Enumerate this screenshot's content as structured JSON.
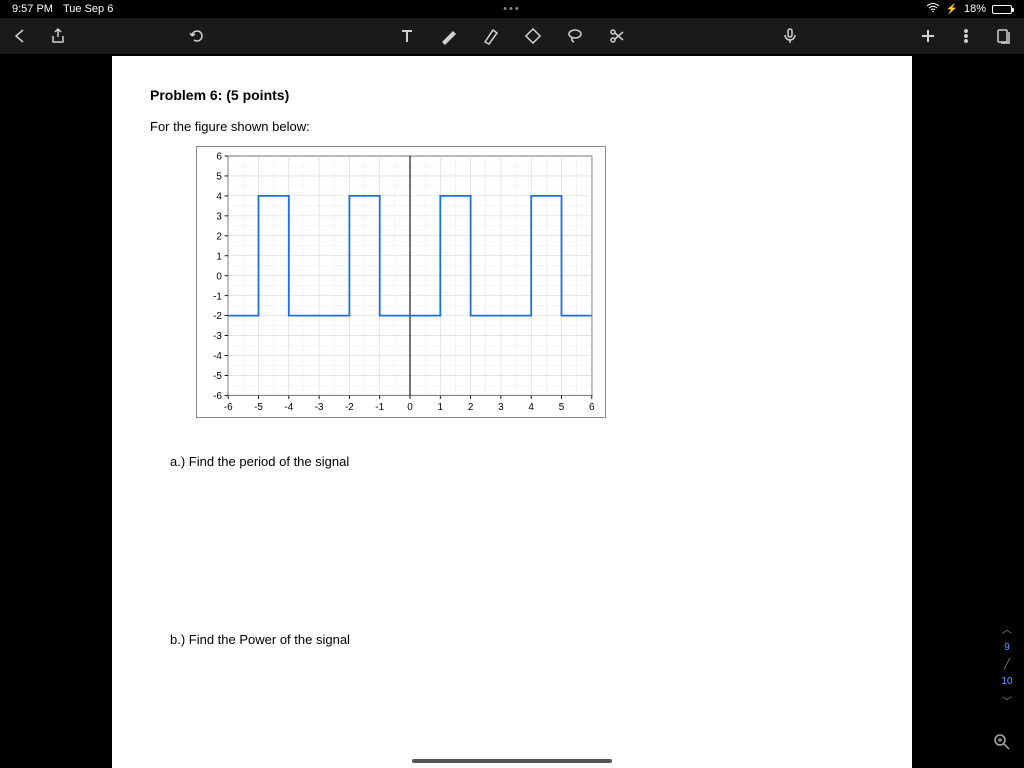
{
  "status": {
    "time": "9:57 PM",
    "date": "Tue Sep 6",
    "battery_pct": "18%"
  },
  "document": {
    "problem_title": "Problem 6:  (5 points)",
    "intro": "For the figure shown below:",
    "question_a": "a.)   Find the period of the signal",
    "question_b": "b.)   Find the Power of the signal"
  },
  "page_nav": {
    "current": "9",
    "next": "10"
  },
  "chart": {
    "type": "line",
    "xlim": [
      -6,
      6
    ],
    "ylim": [
      -6,
      6
    ],
    "xtick_step": 1,
    "ytick_step": 1,
    "x_ticks": [
      -6,
      -5,
      -4,
      -3,
      -2,
      -1,
      0,
      1,
      2,
      3,
      4,
      5,
      6
    ],
    "y_ticks": [
      -6,
      -5,
      -4,
      -3,
      -2,
      -1,
      0,
      1,
      2,
      3,
      4,
      5,
      6
    ],
    "background_color": "#ffffff",
    "grid_color": "#d0d0d0",
    "minor_grid_color": "#e8e8e8",
    "axis_color": "#000000",
    "border_color": "#888888",
    "line_color": "#1f6fd8",
    "line_width": 2,
    "tick_fontsize": 11,
    "signal_points": [
      [
        -6,
        -2
      ],
      [
        -5,
        -2
      ],
      [
        -5,
        4
      ],
      [
        -4,
        4
      ],
      [
        -4,
        -2
      ],
      [
        -2,
        -2
      ],
      [
        -2,
        4
      ],
      [
        -1,
        4
      ],
      [
        -1,
        -2
      ],
      [
        1,
        -2
      ],
      [
        1,
        4
      ],
      [
        2,
        4
      ],
      [
        2,
        -2
      ],
      [
        4,
        -2
      ],
      [
        4,
        4
      ],
      [
        5,
        4
      ],
      [
        5,
        -2
      ],
      [
        6,
        -2
      ]
    ]
  }
}
